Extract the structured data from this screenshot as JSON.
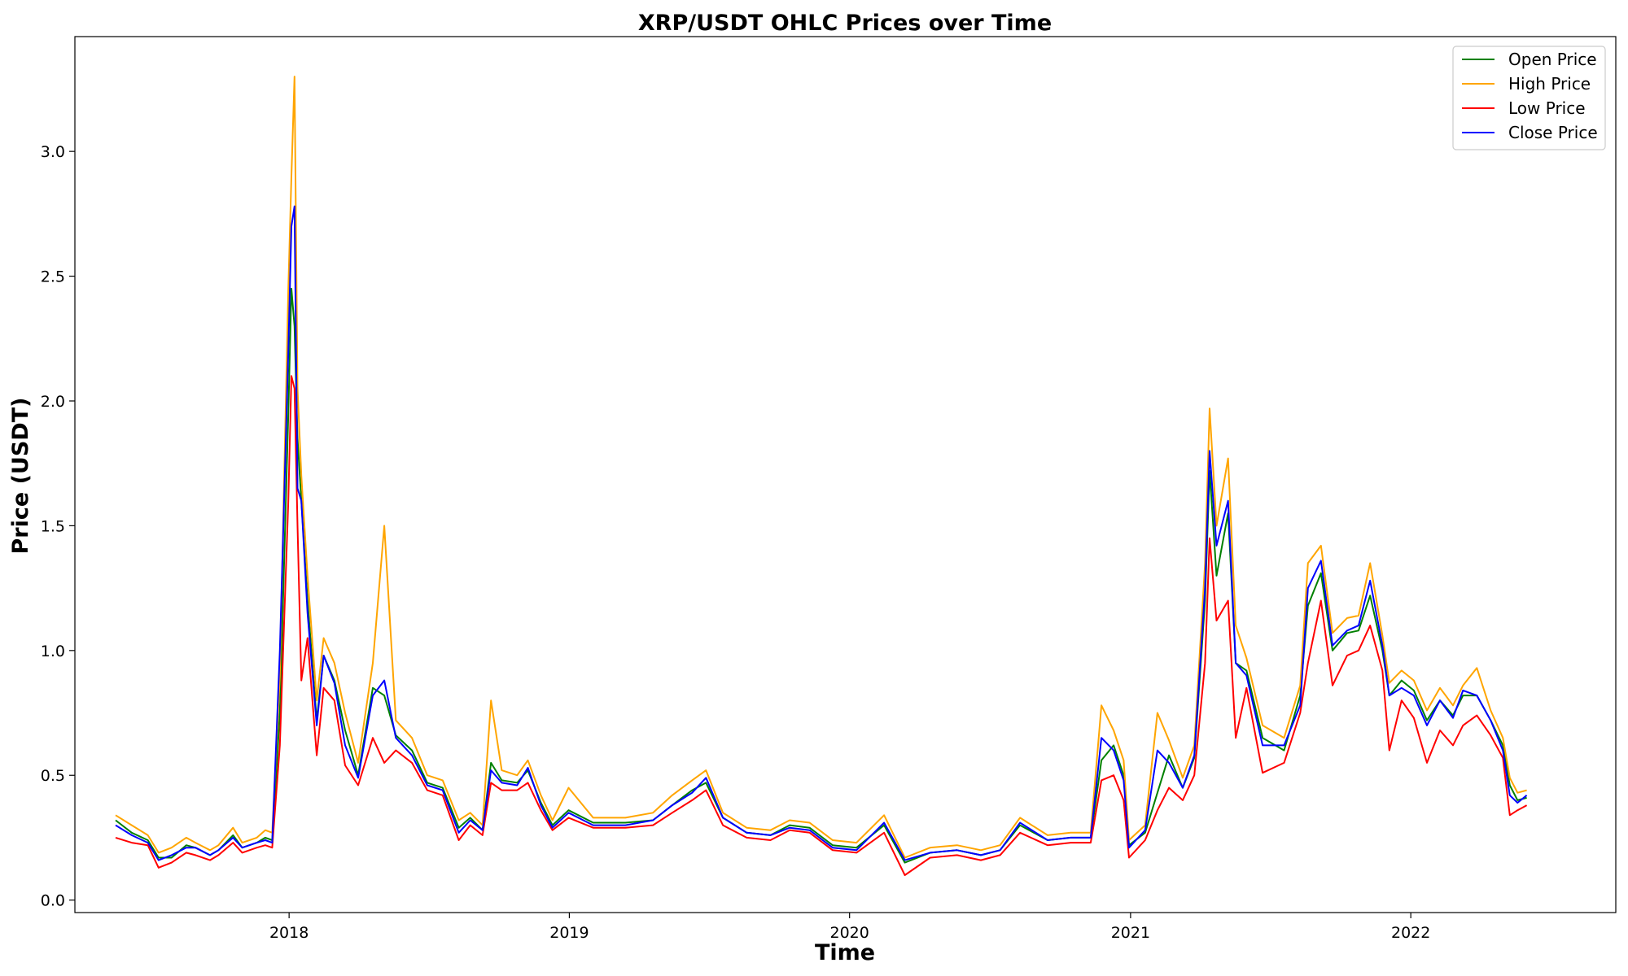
{
  "chart_data": {
    "type": "line",
    "title": "XRP/USDT OHLC Prices over Time",
    "xlabel": "Time",
    "ylabel": "Price (USDT)",
    "xlim": [
      "2017-03-28",
      "2022-09-25"
    ],
    "ylim": [
      -0.05,
      3.46
    ],
    "grid": false,
    "legend_position": "top-right",
    "x_ticks": [
      {
        "date": "2018-01-01",
        "label": "2018"
      },
      {
        "date": "2019-01-01",
        "label": "2019"
      },
      {
        "date": "2020-01-01",
        "label": "2020"
      },
      {
        "date": "2021-01-01",
        "label": "2021"
      },
      {
        "date": "2022-01-01",
        "label": "2022"
      }
    ],
    "y_ticks": [
      {
        "value": 0.0,
        "label": "0.0"
      },
      {
        "value": 0.5,
        "label": "0.5"
      },
      {
        "value": 1.0,
        "label": "1.0"
      },
      {
        "value": 1.5,
        "label": "1.5"
      },
      {
        "value": 2.0,
        "label": "2.0"
      },
      {
        "value": 2.5,
        "label": "2.5"
      },
      {
        "value": 3.0,
        "label": "3.0"
      }
    ],
    "x": [
      "2017-05-20",
      "2017-06-10",
      "2017-07-01",
      "2017-07-15",
      "2017-08-01",
      "2017-08-20",
      "2017-09-01",
      "2017-09-20",
      "2017-10-01",
      "2017-10-20",
      "2017-11-01",
      "2017-11-20",
      "2017-12-01",
      "2017-12-10",
      "2017-12-20",
      "2017-12-31",
      "2018-01-04",
      "2018-01-08",
      "2018-01-12",
      "2018-01-17",
      "2018-01-25",
      "2018-02-06",
      "2018-02-15",
      "2018-03-01",
      "2018-03-15",
      "2018-04-01",
      "2018-04-20",
      "2018-05-05",
      "2018-05-20",
      "2018-06-10",
      "2018-06-30",
      "2018-07-20",
      "2018-08-10",
      "2018-08-25",
      "2018-09-10",
      "2018-09-21",
      "2018-10-05",
      "2018-10-25",
      "2018-11-08",
      "2018-11-25",
      "2018-12-10",
      "2018-12-31",
      "2019-02-01",
      "2019-03-15",
      "2019-04-20",
      "2019-05-15",
      "2019-06-10",
      "2019-06-28",
      "2019-07-20",
      "2019-08-20",
      "2019-09-20",
      "2019-10-15",
      "2019-11-10",
      "2019-12-10",
      "2020-01-10",
      "2020-02-15",
      "2020-03-13",
      "2020-04-15",
      "2020-05-20",
      "2020-06-20",
      "2020-07-15",
      "2020-08-10",
      "2020-09-15",
      "2020-10-15",
      "2020-11-10",
      "2020-11-24",
      "2020-12-10",
      "2020-12-23",
      "2020-12-30",
      "2021-01-20",
      "2021-02-05",
      "2021-02-20",
      "2021-03-10",
      "2021-03-25",
      "2021-04-08",
      "2021-04-14",
      "2021-04-23",
      "2021-05-08",
      "2021-05-18",
      "2021-06-01",
      "2021-06-22",
      "2021-07-20",
      "2021-08-10",
      "2021-08-20",
      "2021-09-06",
      "2021-09-21",
      "2021-10-10",
      "2021-10-25",
      "2021-11-09",
      "2021-11-25",
      "2021-12-04",
      "2021-12-20",
      "2022-01-05",
      "2022-01-22",
      "2022-02-08",
      "2022-02-25",
      "2022-03-10",
      "2022-03-28",
      "2022-04-15",
      "2022-05-01",
      "2022-05-10",
      "2022-05-20",
      "2022-06-01"
    ],
    "series": [
      {
        "name": "Open Price",
        "color": "#008000",
        "values": [
          0.32,
          0.27,
          0.24,
          0.17,
          0.17,
          0.22,
          0.21,
          0.18,
          0.2,
          0.26,
          0.21,
          0.23,
          0.25,
          0.24,
          0.75,
          1.95,
          2.45,
          2.3,
          1.85,
          1.6,
          1.2,
          0.72,
          0.98,
          0.88,
          0.68,
          0.5,
          0.85,
          0.82,
          0.66,
          0.6,
          0.47,
          0.45,
          0.29,
          0.33,
          0.28,
          0.55,
          0.48,
          0.47,
          0.52,
          0.39,
          0.3,
          0.36,
          0.31,
          0.31,
          0.32,
          0.38,
          0.44,
          0.47,
          0.33,
          0.27,
          0.26,
          0.3,
          0.29,
          0.22,
          0.21,
          0.3,
          0.15,
          0.19,
          0.2,
          0.18,
          0.2,
          0.3,
          0.24,
          0.25,
          0.25,
          0.56,
          0.62,
          0.5,
          0.22,
          0.27,
          0.43,
          0.58,
          0.45,
          0.57,
          1.2,
          1.72,
          1.3,
          1.55,
          0.95,
          0.92,
          0.65,
          0.6,
          0.82,
          1.18,
          1.31,
          1.0,
          1.07,
          1.08,
          1.22,
          1.0,
          0.82,
          0.88,
          0.84,
          0.72,
          0.8,
          0.74,
          0.82,
          0.82,
          0.72,
          0.62,
          0.46,
          0.4,
          0.41
        ]
      },
      {
        "name": "High Price",
        "color": "#ffa500",
        "values": [
          0.34,
          0.3,
          0.26,
          0.19,
          0.21,
          0.25,
          0.23,
          0.2,
          0.22,
          0.29,
          0.23,
          0.25,
          0.28,
          0.27,
          0.9,
          2.45,
          2.9,
          3.3,
          2.05,
          1.7,
          1.3,
          0.8,
          1.05,
          0.95,
          0.75,
          0.55,
          0.95,
          1.5,
          0.72,
          0.65,
          0.5,
          0.48,
          0.32,
          0.35,
          0.3,
          0.8,
          0.52,
          0.5,
          0.56,
          0.42,
          0.32,
          0.45,
          0.33,
          0.33,
          0.35,
          0.42,
          0.48,
          0.52,
          0.35,
          0.29,
          0.28,
          0.32,
          0.31,
          0.24,
          0.23,
          0.34,
          0.17,
          0.21,
          0.22,
          0.2,
          0.22,
          0.33,
          0.26,
          0.27,
          0.27,
          0.78,
          0.68,
          0.56,
          0.24,
          0.3,
          0.75,
          0.64,
          0.49,
          0.62,
          1.35,
          1.97,
          1.5,
          1.77,
          1.1,
          0.97,
          0.7,
          0.65,
          0.86,
          1.35,
          1.42,
          1.07,
          1.13,
          1.14,
          1.35,
          1.06,
          0.87,
          0.92,
          0.88,
          0.76,
          0.85,
          0.78,
          0.86,
          0.93,
          0.76,
          0.65,
          0.49,
          0.43,
          0.44
        ]
      },
      {
        "name": "Low Price",
        "color": "#ff0000",
        "values": [
          0.25,
          0.23,
          0.22,
          0.13,
          0.15,
          0.19,
          0.18,
          0.16,
          0.18,
          0.23,
          0.19,
          0.21,
          0.22,
          0.21,
          0.62,
          1.6,
          2.1,
          2.05,
          1.5,
          0.88,
          1.05,
          0.58,
          0.85,
          0.8,
          0.54,
          0.46,
          0.65,
          0.55,
          0.6,
          0.55,
          0.44,
          0.42,
          0.24,
          0.3,
          0.26,
          0.47,
          0.44,
          0.44,
          0.47,
          0.36,
          0.28,
          0.33,
          0.29,
          0.29,
          0.3,
          0.35,
          0.4,
          0.44,
          0.3,
          0.25,
          0.24,
          0.28,
          0.27,
          0.2,
          0.19,
          0.27,
          0.1,
          0.17,
          0.18,
          0.16,
          0.18,
          0.27,
          0.22,
          0.23,
          0.23,
          0.48,
          0.5,
          0.4,
          0.17,
          0.24,
          0.36,
          0.45,
          0.4,
          0.5,
          0.95,
          1.45,
          1.12,
          1.2,
          0.65,
          0.85,
          0.51,
          0.55,
          0.75,
          0.95,
          1.2,
          0.86,
          0.98,
          1.0,
          1.1,
          0.92,
          0.6,
          0.8,
          0.73,
          0.55,
          0.68,
          0.62,
          0.7,
          0.74,
          0.66,
          0.57,
          0.34,
          0.36,
          0.38
        ]
      },
      {
        "name": "Close Price",
        "color": "#0000ff",
        "values": [
          0.3,
          0.26,
          0.23,
          0.16,
          0.18,
          0.21,
          0.21,
          0.18,
          0.2,
          0.25,
          0.21,
          0.23,
          0.24,
          0.23,
          1.0,
          2.2,
          2.7,
          2.78,
          1.65,
          1.6,
          1.15,
          0.7,
          0.98,
          0.87,
          0.62,
          0.49,
          0.82,
          0.88,
          0.65,
          0.58,
          0.46,
          0.44,
          0.27,
          0.32,
          0.28,
          0.52,
          0.47,
          0.46,
          0.53,
          0.38,
          0.29,
          0.35,
          0.3,
          0.3,
          0.32,
          0.38,
          0.43,
          0.49,
          0.33,
          0.27,
          0.26,
          0.29,
          0.28,
          0.21,
          0.2,
          0.31,
          0.16,
          0.19,
          0.2,
          0.18,
          0.2,
          0.31,
          0.24,
          0.25,
          0.25,
          0.65,
          0.6,
          0.48,
          0.21,
          0.28,
          0.6,
          0.55,
          0.45,
          0.58,
          1.25,
          1.8,
          1.42,
          1.6,
          0.95,
          0.9,
          0.62,
          0.62,
          0.78,
          1.25,
          1.36,
          1.02,
          1.08,
          1.1,
          1.28,
          1.02,
          0.82,
          0.85,
          0.82,
          0.7,
          0.8,
          0.73,
          0.84,
          0.82,
          0.72,
          0.6,
          0.42,
          0.39,
          0.42
        ]
      }
    ]
  }
}
